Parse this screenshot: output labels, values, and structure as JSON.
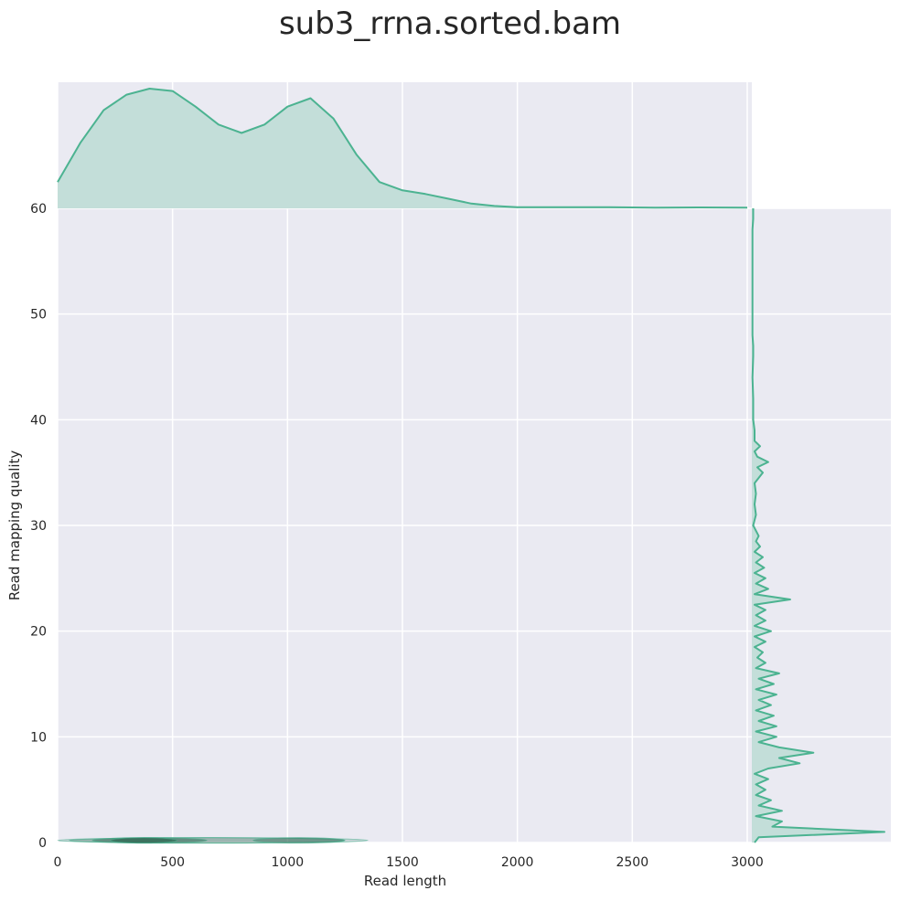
{
  "chart_data": {
    "type": "jointplot-kde",
    "title": "sub3_rrna.sorted.bam",
    "xlabel": "Read length",
    "ylabel": "Read mapping quality",
    "xlim": [
      0,
      3020
    ],
    "ylim": [
      0,
      60
    ],
    "x_ticks": [
      0,
      500,
      1000,
      1500,
      2000,
      2500,
      3000
    ],
    "y_ticks": [
      0,
      10,
      20,
      30,
      40,
      50,
      60
    ],
    "grid": true,
    "colors": {
      "line": "#4cb391",
      "fill": "#c3ded9",
      "panel_bg": "#eaeaf2",
      "grid": "#ffffff",
      "joint_dark": "#1f5e47"
    },
    "marginal_x": {
      "x": [
        0,
        100,
        200,
        300,
        400,
        500,
        600,
        700,
        800,
        900,
        1000,
        1100,
        1200,
        1300,
        1400,
        1500,
        1600,
        1700,
        1800,
        1900,
        2000,
        2200,
        2400,
        2600,
        2800,
        3000
      ],
      "density": [
        0.22,
        0.55,
        0.82,
        0.95,
        1.0,
        0.98,
        0.85,
        0.7,
        0.63,
        0.7,
        0.85,
        0.92,
        0.75,
        0.45,
        0.22,
        0.15,
        0.12,
        0.08,
        0.04,
        0.02,
        0.01,
        0.01,
        0.01,
        0.005,
        0.008,
        0.005
      ]
    },
    "marginal_y": {
      "y": [
        0,
        0.5,
        1,
        1.5,
        2,
        2.5,
        3,
        3.5,
        4,
        4.5,
        5,
        5.5,
        6,
        6.5,
        7,
        7.5,
        8,
        8.5,
        9,
        9.5,
        10,
        10.5,
        11,
        11.5,
        12,
        12.5,
        13,
        13.5,
        14,
        14.5,
        15,
        15.5,
        16,
        16.5,
        17,
        17.5,
        18,
        18.5,
        19,
        19.5,
        20,
        20.5,
        21,
        21.5,
        22,
        22.5,
        23,
        23.5,
        24,
        24.5,
        25,
        25.5,
        26,
        26.5,
        27,
        27.5,
        28,
        28.5,
        29,
        30,
        31,
        32,
        33,
        34,
        35,
        35.5,
        36,
        36.5,
        37,
        37.5,
        38,
        39,
        40,
        42,
        44,
        46,
        47,
        48,
        50,
        52,
        54,
        56,
        58,
        59,
        60
      ],
      "density": [
        0.02,
        0.05,
        0.97,
        0.15,
        0.22,
        0.03,
        0.22,
        0.05,
        0.14,
        0.03,
        0.1,
        0.03,
        0.12,
        0.02,
        0.12,
        0.35,
        0.2,
        0.45,
        0.2,
        0.05,
        0.18,
        0.03,
        0.18,
        0.05,
        0.16,
        0.03,
        0.14,
        0.05,
        0.18,
        0.03,
        0.16,
        0.05,
        0.2,
        0.03,
        0.1,
        0.04,
        0.08,
        0.02,
        0.1,
        0.02,
        0.14,
        0.02,
        0.1,
        0.03,
        0.1,
        0.02,
        0.28,
        0.02,
        0.12,
        0.03,
        0.1,
        0.02,
        0.09,
        0.03,
        0.08,
        0.02,
        0.06,
        0.03,
        0.05,
        0.01,
        0.03,
        0.02,
        0.03,
        0.02,
        0.08,
        0.04,
        0.12,
        0.04,
        0.02,
        0.06,
        0.02,
        0.02,
        0.01,
        0.01,
        0.005,
        0.01,
        0.01,
        0.005,
        0.005,
        0.005,
        0.005,
        0.005,
        0.005,
        0.01,
        0.01
      ]
    },
    "joint_density": [
      {
        "x0": 0,
        "x1": 1350,
        "y": 0.2,
        "alpha": 0.25
      },
      {
        "x0": 50,
        "x1": 1250,
        "y": 0.2,
        "alpha": 0.45
      },
      {
        "x0": 150,
        "x1": 650,
        "y": 0.2,
        "alpha": 0.75
      },
      {
        "x0": 850,
        "x1": 1250,
        "y": 0.2,
        "alpha": 0.6
      },
      {
        "x0": 230,
        "x1": 520,
        "y": 0.2,
        "alpha": 0.95
      }
    ]
  }
}
